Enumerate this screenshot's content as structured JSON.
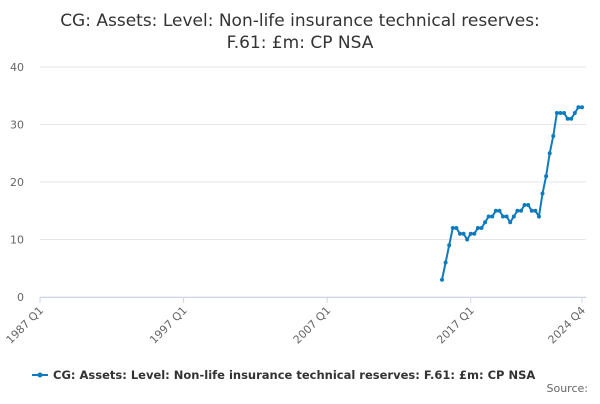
{
  "chart_data": {
    "type": "line",
    "title": [
      "CG: Assets: Level: Non-life insurance technical reserves:",
      "F.61: £m: CP NSA"
    ],
    "categories": [
      "1987 Q1",
      null,
      null,
      null,
      null,
      null,
      null,
      null,
      null,
      null,
      null,
      null,
      null,
      null,
      null,
      null,
      null,
      null,
      null,
      null,
      null,
      null,
      null,
      null,
      null,
      null,
      null,
      null,
      null,
      null,
      null,
      null,
      null,
      null,
      null,
      null,
      null,
      null,
      null,
      null,
      "1997 Q1",
      null,
      null,
      null,
      null,
      null,
      null,
      null,
      null,
      null,
      null,
      null,
      null,
      null,
      null,
      null,
      null,
      null,
      null,
      null,
      null,
      null,
      null,
      null,
      null,
      null,
      null,
      null,
      null,
      null,
      null,
      null,
      null,
      null,
      null,
      null,
      null,
      null,
      null,
      null,
      "2007 Q1",
      null,
      null,
      null,
      null,
      null,
      null,
      null,
      null,
      null,
      null,
      null,
      null,
      null,
      null,
      null,
      null,
      null,
      null,
      null,
      null,
      null,
      null,
      null,
      null,
      null,
      null,
      null,
      null,
      null,
      null,
      null,
      null,
      null,
      null,
      null,
      null,
      null,
      null,
      null,
      "2017 Q1",
      null,
      null,
      null,
      null,
      null,
      null,
      null,
      null,
      null,
      null,
      null,
      null,
      null,
      null,
      null,
      null,
      null,
      null,
      null,
      null,
      null,
      null,
      null,
      null,
      null,
      null,
      null,
      null,
      null,
      null,
      "2024 Q4"
    ],
    "series": [
      {
        "name": "CG: Assets: Level: Non-life insurance technical reserves: F.61: £m: CP NSA",
        "color": "#0e7bbd",
        "values": [
          null,
          null,
          null,
          null,
          null,
          null,
          null,
          null,
          null,
          null,
          null,
          null,
          null,
          null,
          null,
          null,
          null,
          null,
          null,
          null,
          null,
          null,
          null,
          null,
          null,
          null,
          null,
          null,
          null,
          null,
          null,
          null,
          null,
          null,
          null,
          null,
          null,
          null,
          null,
          null,
          null,
          null,
          null,
          null,
          null,
          null,
          null,
          null,
          null,
          null,
          null,
          null,
          null,
          null,
          null,
          null,
          null,
          null,
          null,
          null,
          null,
          null,
          null,
          null,
          null,
          null,
          null,
          null,
          null,
          null,
          null,
          null,
          null,
          null,
          null,
          null,
          null,
          null,
          null,
          null,
          null,
          null,
          null,
          null,
          null,
          null,
          null,
          null,
          null,
          null,
          null,
          null,
          null,
          null,
          null,
          null,
          null,
          null,
          null,
          null,
          null,
          null,
          null,
          null,
          null,
          null,
          null,
          null,
          null,
          null,
          null,
          null,
          3,
          6,
          9,
          12,
          12,
          11,
          11,
          10,
          11,
          11,
          12,
          12,
          13,
          14,
          14,
          15,
          15,
          14,
          14,
          13,
          14,
          15,
          15,
          16,
          16,
          15,
          15,
          14,
          18,
          21,
          25,
          28,
          32,
          32,
          32,
          31,
          31,
          32,
          33,
          33
        ]
      }
    ],
    "ylim": [
      0,
      40
    ],
    "yticks": [
      0,
      10,
      20,
      30,
      40
    ],
    "grid": true,
    "legend": "bottom",
    "source_label": "Source:"
  }
}
